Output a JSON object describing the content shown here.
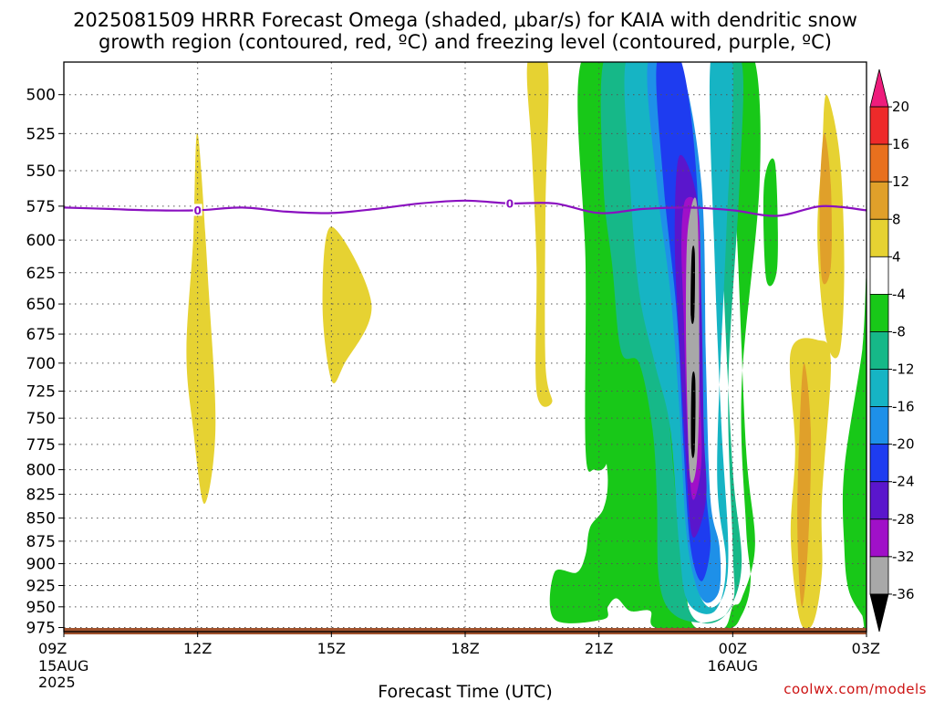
{
  "title": {
    "line1": "2025081509 HRRR Forecast Omega (shaded, μbar/s) for KAIA with dendritic snow",
    "line2": "growth region (contoured, red, ºC) and freezing level (contoured, purple, ºC)"
  },
  "xlabel": "Forecast Time (UTC)",
  "credit": "coolwx.com/models",
  "colors": {
    "freezing_line": "#8a10c0",
    "ground": "#a0522d",
    "grid": "#555555"
  },
  "chart_data": {
    "type": "heatmap",
    "title": "2025081509 HRRR Forecast Omega (shaded, μbar/s) for KAIA with dendritic snow growth region (contoured, red, ºC) and freezing level (contoured, purple, ºC)",
    "xlabel": "Forecast Time (UTC)",
    "ylabel": "",
    "y_scale": "log-pressure (inverted)",
    "ylim_hPa": [
      980,
      480
    ],
    "y_ticks": [
      "500",
      "525",
      "550",
      "575",
      "600",
      "625",
      "650",
      "675",
      "700",
      "725",
      "750",
      "775",
      "800",
      "825",
      "850",
      "875",
      "900",
      "925",
      "950",
      "975"
    ],
    "x_ticks": [
      {
        "hours": 0,
        "label": "09Z",
        "sub1": "15AUG",
        "sub2": "2025"
      },
      {
        "hours": 3,
        "label": "12Z",
        "sub1": "",
        "sub2": ""
      },
      {
        "hours": 6,
        "label": "15Z",
        "sub1": "",
        "sub2": ""
      },
      {
        "hours": 9,
        "label": "18Z",
        "sub1": "",
        "sub2": ""
      },
      {
        "hours": 12,
        "label": "21Z",
        "sub1": "",
        "sub2": ""
      },
      {
        "hours": 15,
        "label": "00Z",
        "sub1": "16AUG",
        "sub2": ""
      },
      {
        "hours": 18,
        "label": "03Z",
        "sub1": "",
        "sub2": ""
      }
    ],
    "xlim_hours": [
      0,
      18
    ],
    "colorbar": {
      "labels": [
        "20",
        "16",
        "12",
        "8",
        "4",
        "-4",
        "-8",
        "-12",
        "-16",
        "-20",
        "-24",
        "-28",
        "-32",
        "-36"
      ],
      "bins": [
        {
          "from": 20,
          "to": 24,
          "color": "#ee1c7c"
        },
        {
          "from": 16,
          "to": 20,
          "color": "#ee2a2a"
        },
        {
          "from": 12,
          "to": 16,
          "color": "#e8701e"
        },
        {
          "from": 8,
          "to": 12,
          "color": "#e0a02a"
        },
        {
          "from": 4,
          "to": 8,
          "color": "#e6d232"
        },
        {
          "from": -4,
          "to": 4,
          "color": "#ffffff"
        },
        {
          "from": -8,
          "to": -4,
          "color": "#18c818"
        },
        {
          "from": -12,
          "to": -8,
          "color": "#16b888"
        },
        {
          "from": -16,
          "to": -12,
          "color": "#16b4c4"
        },
        {
          "from": -20,
          "to": -16,
          "color": "#1e90e8"
        },
        {
          "from": -24,
          "to": -20,
          "color": "#1e3cf0"
        },
        {
          "from": -28,
          "to": -24,
          "color": "#5a16cc"
        },
        {
          "from": -32,
          "to": -28,
          "color": "#a010c8"
        },
        {
          "from": -36,
          "to": -32,
          "color": "#a8a8a8"
        },
        {
          "from": -40,
          "to": -36,
          "color": "#000000"
        }
      ]
    },
    "freezing_level": {
      "label": "0",
      "points": [
        {
          "h": 0,
          "p": 576
        },
        {
          "h": 1,
          "p": 577
        },
        {
          "h": 2,
          "p": 578
        },
        {
          "h": 3,
          "p": 578
        },
        {
          "h": 4,
          "p": 576
        },
        {
          "h": 5,
          "p": 579
        },
        {
          "h": 6,
          "p": 580
        },
        {
          "h": 7,
          "p": 577
        },
        {
          "h": 8,
          "p": 573
        },
        {
          "h": 9,
          "p": 571
        },
        {
          "h": 10,
          "p": 573
        },
        {
          "h": 11,
          "p": 573
        },
        {
          "h": 12,
          "p": 580
        },
        {
          "h": 13,
          "p": 577
        },
        {
          "h": 14,
          "p": 576
        },
        {
          "h": 15,
          "p": 578
        },
        {
          "h": 16,
          "p": 582
        },
        {
          "h": 17,
          "p": 575
        },
        {
          "h": 18,
          "p": 578
        }
      ],
      "label_hours": [
        3,
        10
      ]
    },
    "omega_regions": [
      {
        "value": 6,
        "points": [
          [
            3.0,
            525
          ],
          [
            3.25,
            640
          ],
          [
            3.4,
            760
          ],
          [
            3.15,
            835
          ],
          [
            2.9,
            760
          ],
          [
            2.75,
            690
          ],
          [
            2.9,
            600
          ]
        ]
      },
      {
        "value": 6,
        "points": [
          [
            6.0,
            590
          ],
          [
            6.9,
            650
          ],
          [
            6.3,
            700
          ],
          [
            6.0,
            715
          ],
          [
            5.8,
            650
          ]
        ]
      },
      {
        "value": 6,
        "points": [
          [
            10.4,
            480
          ],
          [
            10.85,
            480
          ],
          [
            10.8,
            580
          ],
          [
            10.8,
            700
          ],
          [
            10.95,
            735
          ],
          [
            10.6,
            725
          ],
          [
            10.6,
            620
          ],
          [
            10.5,
            540
          ]
        ]
      },
      {
        "value": 6,
        "points": [
          [
            13.0,
            725
          ],
          [
            13.15,
            770
          ],
          [
            13.2,
            870
          ],
          [
            13.05,
            885
          ],
          [
            12.8,
            820
          ],
          [
            12.8,
            760
          ]
        ]
      },
      {
        "value": 6,
        "points": [
          [
            16.3,
            690
          ],
          [
            16.9,
            680
          ],
          [
            17.2,
            700
          ],
          [
            17.0,
            830
          ],
          [
            17.0,
            910
          ],
          [
            16.8,
            970
          ],
          [
            16.5,
            965
          ],
          [
            16.3,
            870
          ],
          [
            16.4,
            780
          ]
        ]
      },
      {
        "value": 6,
        "points": [
          [
            17.1,
            500
          ],
          [
            17.4,
            540
          ],
          [
            17.5,
            620
          ],
          [
            17.4,
            690
          ],
          [
            17.1,
            680
          ],
          [
            16.9,
            600
          ],
          [
            17.0,
            540
          ]
        ]
      },
      {
        "value": 10,
        "points": [
          [
            17.05,
            525
          ],
          [
            17.2,
            560
          ],
          [
            17.2,
            620
          ],
          [
            17.0,
            630
          ],
          [
            16.95,
            570
          ]
        ]
      },
      {
        "value": 10,
        "points": [
          [
            16.6,
            700
          ],
          [
            16.75,
            760
          ],
          [
            16.7,
            870
          ],
          [
            16.55,
            950
          ],
          [
            16.45,
            860
          ],
          [
            16.5,
            760
          ]
        ]
      },
      {
        "value": -6,
        "points": [
          [
            11.6,
            480
          ],
          [
            13.0,
            480
          ],
          [
            13.3,
            560
          ],
          [
            13.65,
            720
          ],
          [
            13.9,
            880
          ],
          [
            14.0,
            950
          ],
          [
            14.2,
            976
          ],
          [
            14.8,
            976
          ],
          [
            15.0,
            950
          ],
          [
            15.2,
            940
          ],
          [
            15.5,
            880
          ],
          [
            15.3,
            780
          ],
          [
            15.1,
            600
          ],
          [
            14.9,
            480
          ],
          [
            15.5,
            480
          ],
          [
            15.6,
            560
          ],
          [
            15.2,
            720
          ],
          [
            15.3,
            860
          ],
          [
            15.4,
            920
          ],
          [
            15.2,
            960
          ],
          [
            14.8,
            978
          ],
          [
            13.3,
            976
          ],
          [
            13.15,
            955
          ],
          [
            12.7,
            955
          ],
          [
            12.4,
            940
          ],
          [
            12.2,
            950
          ],
          [
            12.1,
            965
          ],
          [
            11.0,
            965
          ],
          [
            11.0,
            910
          ],
          [
            11.5,
            910
          ],
          [
            11.7,
            890
          ],
          [
            11.8,
            860
          ],
          [
            12.1,
            840
          ],
          [
            12.2,
            810
          ],
          [
            12.1,
            760
          ],
          [
            12.2,
            700
          ],
          [
            12.7,
            680
          ],
          [
            12.9,
            700
          ],
          [
            12.75,
            710
          ],
          [
            12.3,
            730
          ],
          [
            12.2,
            790
          ],
          [
            11.9,
            800
          ],
          [
            11.7,
            780
          ],
          [
            11.7,
            620
          ]
        ]
      },
      {
        "value": -6,
        "points": [
          [
            15.7,
            560
          ],
          [
            15.95,
            545
          ],
          [
            16.0,
            620
          ],
          [
            15.75,
            630
          ]
        ]
      },
      {
        "value": -6,
        "points": [
          [
            17.9,
            690
          ],
          [
            18.0,
            640
          ],
          [
            18.0,
            965
          ],
          [
            17.9,
            960
          ],
          [
            17.6,
            930
          ],
          [
            17.5,
            880
          ],
          [
            17.5,
            800
          ]
        ]
      },
      {
        "value": -10,
        "points": [
          [
            12.1,
            480
          ],
          [
            12.8,
            480
          ],
          [
            13.2,
            560
          ],
          [
            13.5,
            710
          ],
          [
            13.8,
            870
          ],
          [
            14.0,
            950
          ],
          [
            14.4,
            970
          ],
          [
            14.9,
            955
          ],
          [
            15.2,
            900
          ],
          [
            15.0,
            800
          ],
          [
            14.8,
            640
          ],
          [
            14.6,
            480
          ],
          [
            15.2,
            480
          ],
          [
            15.15,
            560
          ],
          [
            14.9,
            720
          ],
          [
            15.0,
            880
          ],
          [
            15.0,
            945
          ],
          [
            14.5,
            968
          ],
          [
            13.7,
            960
          ],
          [
            13.35,
            920
          ],
          [
            13.3,
            830
          ],
          [
            13.2,
            760
          ],
          [
            12.9,
            700
          ],
          [
            12.5,
            690
          ],
          [
            12.3,
            620
          ],
          [
            12.1,
            560
          ]
        ]
      },
      {
        "value": -14,
        "points": [
          [
            12.6,
            480
          ],
          [
            13.25,
            480
          ],
          [
            13.7,
            560
          ],
          [
            13.9,
            700
          ],
          [
            14.0,
            830
          ],
          [
            14.15,
            915
          ],
          [
            14.45,
            950
          ],
          [
            14.8,
            935
          ],
          [
            14.9,
            880
          ],
          [
            14.75,
            760
          ],
          [
            14.6,
            620
          ],
          [
            14.5,
            480
          ],
          [
            15.0,
            480
          ],
          [
            14.85,
            600
          ],
          [
            14.65,
            800
          ],
          [
            14.85,
            900
          ],
          [
            14.6,
            955
          ],
          [
            14.0,
            945
          ],
          [
            13.8,
            880
          ],
          [
            13.6,
            760
          ],
          [
            13.25,
            700
          ],
          [
            12.9,
            640
          ],
          [
            12.7,
            560
          ]
        ]
      },
      {
        "value": -18,
        "points": [
          [
            13.1,
            480
          ],
          [
            13.8,
            480
          ],
          [
            14.3,
            560
          ],
          [
            14.4,
            700
          ],
          [
            14.5,
            830
          ],
          [
            14.7,
            880
          ],
          [
            14.7,
            930
          ],
          [
            14.4,
            945
          ],
          [
            14.15,
            920
          ],
          [
            13.95,
            860
          ],
          [
            13.8,
            740
          ],
          [
            13.6,
            640
          ],
          [
            13.3,
            560
          ]
        ]
      },
      {
        "value": -22,
        "points": [
          [
            13.3,
            480
          ],
          [
            13.85,
            480
          ],
          [
            14.2,
            560
          ],
          [
            14.25,
            700
          ],
          [
            14.4,
            820
          ],
          [
            14.5,
            880
          ],
          [
            14.3,
            920
          ],
          [
            14.05,
            880
          ],
          [
            13.9,
            780
          ],
          [
            13.75,
            660
          ],
          [
            13.45,
            560
          ]
        ]
      },
      {
        "value": -26,
        "points": [
          [
            13.8,
            540
          ],
          [
            14.2,
            570
          ],
          [
            14.3,
            650
          ],
          [
            14.35,
            760
          ],
          [
            14.4,
            830
          ],
          [
            14.1,
            870
          ],
          [
            13.95,
            790
          ],
          [
            13.8,
            680
          ],
          [
            13.7,
            600
          ]
        ]
      },
      {
        "value": -30,
        "points": [
          [
            13.95,
            570
          ],
          [
            14.25,
            585
          ],
          [
            14.25,
            700
          ],
          [
            14.3,
            790
          ],
          [
            14.1,
            830
          ],
          [
            13.98,
            760
          ],
          [
            13.9,
            660
          ],
          [
            13.85,
            600
          ]
        ]
      },
      {
        "value": -34,
        "points": [
          [
            14.0,
            590
          ],
          [
            14.2,
            575
          ],
          [
            14.25,
            700
          ],
          [
            14.2,
            790
          ],
          [
            14.05,
            810
          ],
          [
            13.98,
            740
          ],
          [
            13.95,
            650
          ]
        ]
      },
      {
        "value": -38,
        "points": [
          [
            14.08,
            610
          ],
          [
            14.15,
            610
          ],
          [
            14.14,
            660
          ],
          [
            14.06,
            660
          ]
        ]
      },
      {
        "value": -38,
        "points": [
          [
            14.08,
            715
          ],
          [
            14.16,
            715
          ],
          [
            14.15,
            780
          ],
          [
            14.07,
            780
          ]
        ]
      }
    ]
  }
}
